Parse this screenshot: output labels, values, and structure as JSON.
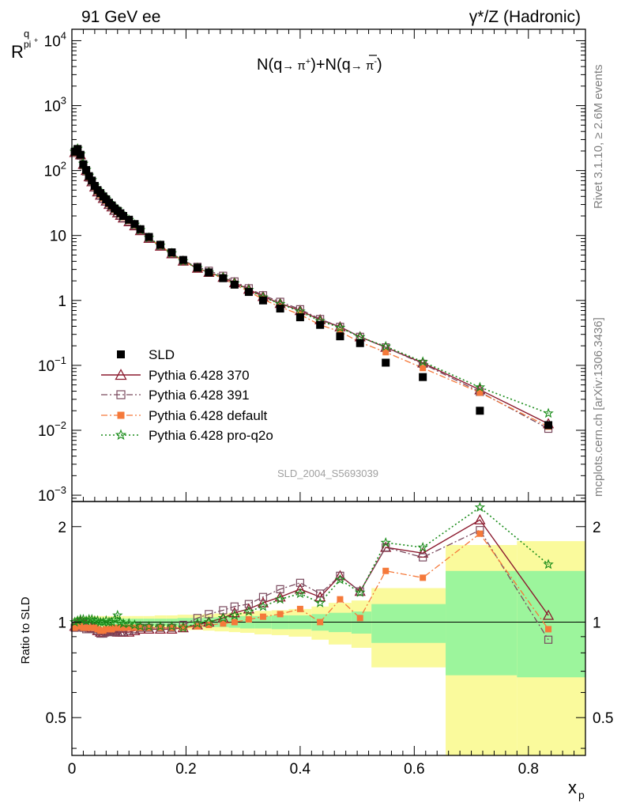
{
  "header": {
    "left": "91 GeV ee",
    "right": "γ*/Z (Hadronic)"
  },
  "side": {
    "rivet": "Rivet 3.1.10, ≥ 2.6M events",
    "mcplots": "mcplots.cern.ch [arXiv:1306.3436]"
  },
  "main_title": {
    "prefix": "N(q",
    "mid": " π",
    "mid2": ")+N(",
    "qbar": "q",
    "suffix": " π",
    "end": ")"
  },
  "ylabel": {
    "base": "R",
    "sup": "q",
    "sub": "pi",
    "subsup": "+"
  },
  "analysis_id": "SLD_2004_S5693039",
  "ratio_ylabel": "Ratio to SLD",
  "xlabel": {
    "base": "x",
    "sub": "p"
  },
  "legend": [
    {
      "label": "SLD",
      "key": "sld"
    },
    {
      "label": "Pythia 6.428 370",
      "key": "p370"
    },
    {
      "label": "Pythia 6.428 391",
      "key": "p391"
    },
    {
      "label": "Pythia 6.428 default",
      "key": "pdef"
    },
    {
      "label": "Pythia 6.428 pro-q2o",
      "key": "pq2o"
    }
  ],
  "chart_data": {
    "type": "scatter",
    "x_ticks": [
      "0",
      "0.2",
      "0.4",
      "0.6",
      "0.8"
    ],
    "xlim": [
      0,
      0.9
    ],
    "main": {
      "yscale": "log",
      "ylim": [
        0.0008,
        15000
      ],
      "y_ticks": [
        {
          "v": 10000,
          "label": "10",
          "exp": "4"
        },
        {
          "v": 1000,
          "label": "10",
          "exp": "3"
        },
        {
          "v": 100,
          "label": "10",
          "exp": "2"
        },
        {
          "v": 10,
          "label": "10",
          "exp": ""
        },
        {
          "v": 1,
          "label": "1",
          "exp": ""
        },
        {
          "v": 0.1,
          "label": "10",
          "exp": "−1"
        },
        {
          "v": 0.01,
          "label": "10",
          "exp": "−2"
        },
        {
          "v": 0.001,
          "label": "10",
          "exp": "−3"
        }
      ]
    },
    "ratio": {
      "yscale": "log",
      "ylim": [
        0.38,
        2.4
      ],
      "y_ticks": [
        {
          "v": 0.5,
          "label": "0.5"
        },
        {
          "v": 1,
          "label": "1"
        },
        {
          "v": 2,
          "label": "2"
        }
      ]
    },
    "x": [
      0.005,
      0.01,
      0.015,
      0.02,
      0.025,
      0.03,
      0.035,
      0.04,
      0.045,
      0.05,
      0.055,
      0.06,
      0.065,
      0.07,
      0.075,
      0.08,
      0.085,
      0.09,
      0.1,
      0.11,
      0.12,
      0.135,
      0.155,
      0.175,
      0.195,
      0.22,
      0.24,
      0.265,
      0.285,
      0.31,
      0.335,
      0.365,
      0.4,
      0.435,
      0.47,
      0.505,
      0.55,
      0.615,
      0.715,
      0.835
    ],
    "bins": [
      [
        0.0025,
        0.0075
      ],
      [
        0.0075,
        0.0125
      ],
      [
        0.0125,
        0.0175
      ],
      [
        0.0175,
        0.0225
      ],
      [
        0.0225,
        0.0275
      ],
      [
        0.0275,
        0.0325
      ],
      [
        0.0325,
        0.0375
      ],
      [
        0.0375,
        0.0425
      ],
      [
        0.0425,
        0.0475
      ],
      [
        0.0475,
        0.0525
      ],
      [
        0.0525,
        0.0575
      ],
      [
        0.0575,
        0.0625
      ],
      [
        0.0625,
        0.0675
      ],
      [
        0.0675,
        0.0725
      ],
      [
        0.0725,
        0.0775
      ],
      [
        0.0775,
        0.0825
      ],
      [
        0.0825,
        0.0875
      ],
      [
        0.0875,
        0.095
      ],
      [
        0.095,
        0.105
      ],
      [
        0.105,
        0.115
      ],
      [
        0.115,
        0.125
      ],
      [
        0.125,
        0.145
      ],
      [
        0.145,
        0.165
      ],
      [
        0.165,
        0.185
      ],
      [
        0.185,
        0.205
      ],
      [
        0.205,
        0.23
      ],
      [
        0.23,
        0.25
      ],
      [
        0.25,
        0.275
      ],
      [
        0.275,
        0.295
      ],
      [
        0.295,
        0.32
      ],
      [
        0.32,
        0.35
      ],
      [
        0.35,
        0.38
      ],
      [
        0.38,
        0.42
      ],
      [
        0.42,
        0.45
      ],
      [
        0.45,
        0.49
      ],
      [
        0.49,
        0.525
      ],
      [
        0.525,
        0.585
      ],
      [
        0.585,
        0.655
      ],
      [
        0.655,
        0.78
      ],
      [
        0.78,
        0.9
      ]
    ],
    "band_green": [
      [
        0.98,
        1.02
      ],
      [
        0.98,
        1.02
      ],
      [
        0.98,
        1.02
      ],
      [
        0.98,
        1.02
      ],
      [
        0.98,
        1.02
      ],
      [
        0.975,
        1.025
      ],
      [
        0.975,
        1.025
      ],
      [
        0.975,
        1.025
      ],
      [
        0.975,
        1.025
      ],
      [
        0.975,
        1.025
      ],
      [
        0.975,
        1.025
      ],
      [
        0.975,
        1.025
      ],
      [
        0.975,
        1.025
      ],
      [
        0.975,
        1.025
      ],
      [
        0.975,
        1.025
      ],
      [
        0.975,
        1.025
      ],
      [
        0.975,
        1.025
      ],
      [
        0.975,
        1.025
      ],
      [
        0.975,
        1.025
      ],
      [
        0.975,
        1.025
      ],
      [
        0.975,
        1.025
      ],
      [
        0.975,
        1.025
      ],
      [
        0.975,
        1.025
      ],
      [
        0.975,
        1.025
      ],
      [
        0.97,
        1.03
      ],
      [
        0.97,
        1.03
      ],
      [
        0.965,
        1.035
      ],
      [
        0.965,
        1.035
      ],
      [
        0.96,
        1.04
      ],
      [
        0.955,
        1.045
      ],
      [
        0.955,
        1.045
      ],
      [
        0.95,
        1.05
      ],
      [
        0.95,
        1.05
      ],
      [
        0.94,
        1.06
      ],
      [
        0.93,
        1.07
      ],
      [
        0.92,
        1.08
      ],
      [
        0.86,
        1.14
      ],
      [
        0.86,
        1.14
      ],
      [
        0.68,
        1.45
      ],
      [
        0.67,
        1.45
      ]
    ],
    "band_yellow": [
      [
        0.97,
        1.03
      ],
      [
        0.96,
        1.04
      ],
      [
        0.96,
        1.04
      ],
      [
        0.96,
        1.04
      ],
      [
        0.96,
        1.04
      ],
      [
        0.955,
        1.045
      ],
      [
        0.955,
        1.045
      ],
      [
        0.955,
        1.045
      ],
      [
        0.955,
        1.045
      ],
      [
        0.955,
        1.045
      ],
      [
        0.955,
        1.045
      ],
      [
        0.955,
        1.045
      ],
      [
        0.955,
        1.045
      ],
      [
        0.955,
        1.045
      ],
      [
        0.955,
        1.045
      ],
      [
        0.955,
        1.045
      ],
      [
        0.955,
        1.045
      ],
      [
        0.955,
        1.045
      ],
      [
        0.955,
        1.045
      ],
      [
        0.955,
        1.045
      ],
      [
        0.955,
        1.045
      ],
      [
        0.955,
        1.045
      ],
      [
        0.95,
        1.05
      ],
      [
        0.95,
        1.05
      ],
      [
        0.945,
        1.055
      ],
      [
        0.945,
        1.055
      ],
      [
        0.94,
        1.06
      ],
      [
        0.935,
        1.065
      ],
      [
        0.93,
        1.07
      ],
      [
        0.925,
        1.075
      ],
      [
        0.915,
        1.085
      ],
      [
        0.91,
        1.09
      ],
      [
        0.9,
        1.1
      ],
      [
        0.88,
        1.12
      ],
      [
        0.85,
        1.15
      ],
      [
        0.83,
        1.17
      ],
      [
        0.72,
        1.28
      ],
      [
        0.72,
        1.28
      ],
      [
        0.38,
        1.75
      ],
      [
        0.38,
        1.8
      ]
    ],
    "series": [
      {
        "name": "SLD",
        "key": "sld",
        "values": [
          195,
          215,
          175,
          125,
          102,
          82,
          70,
          58,
          50,
          45,
          40,
          36,
          32,
          29,
          26,
          24,
          22,
          20,
          17.5,
          15,
          12.5,
          9.5,
          7.2,
          5.5,
          4.2,
          3.2,
          2.7,
          2.2,
          1.75,
          1.35,
          1.0,
          0.75,
          0.55,
          0.42,
          0.28,
          0.22,
          0.11,
          0.066,
          0.02,
          0.012
        ]
      },
      {
        "name": "Pythia 6.428 370",
        "key": "p370",
        "ratio": [
          0.97,
          0.99,
          1.0,
          0.99,
          0.98,
          0.98,
          0.96,
          0.96,
          0.94,
          0.93,
          0.93,
          0.94,
          0.94,
          0.95,
          0.94,
          0.93,
          0.93,
          0.93,
          0.93,
          0.94,
          0.95,
          0.95,
          0.95,
          0.95,
          0.96,
          0.98,
          1.0,
          1.03,
          1.07,
          1.1,
          1.15,
          1.2,
          1.27,
          1.2,
          1.4,
          1.25,
          1.72,
          1.65,
          2.1,
          1.05
        ]
      },
      {
        "name": "Pythia 6.428 391",
        "key": "p391",
        "ratio": [
          0.96,
          0.98,
          0.97,
          0.96,
          0.95,
          0.95,
          0.95,
          0.95,
          0.94,
          0.92,
          0.92,
          0.93,
          0.93,
          0.94,
          0.93,
          0.93,
          0.93,
          0.93,
          0.94,
          0.95,
          0.96,
          0.96,
          0.96,
          0.96,
          0.98,
          1.03,
          1.06,
          1.09,
          1.12,
          1.14,
          1.2,
          1.27,
          1.33,
          1.23,
          1.4,
          1.25,
          1.72,
          1.6,
          1.95,
          0.88
        ]
      },
      {
        "name": "Pythia 6.428 default",
        "key": "pdef",
        "ratio": [
          0.96,
          0.97,
          0.97,
          0.96,
          0.96,
          0.96,
          0.96,
          0.96,
          0.95,
          0.94,
          0.94,
          0.95,
          0.95,
          0.95,
          0.96,
          0.96,
          0.96,
          0.96,
          0.96,
          0.96,
          0.96,
          0.96,
          0.96,
          0.96,
          0.96,
          0.97,
          0.98,
          0.99,
          1.0,
          1.02,
          1.04,
          1.06,
          1.1,
          1.0,
          1.18,
          1.03,
          1.45,
          1.38,
          1.9,
          0.95
        ]
      },
      {
        "name": "Pythia 6.428 pro-q2o",
        "key": "pq2o",
        "ratio": [
          1.0,
          1.01,
          1.02,
          1.02,
          1.01,
          1.02,
          1.02,
          1.01,
          1.01,
          1.0,
          1.0,
          1.01,
          1.0,
          1.0,
          1.02,
          1.05,
          1.0,
          0.99,
          0.99,
          0.98,
          0.97,
          0.97,
          0.97,
          0.97,
          0.96,
          0.99,
          1.0,
          1.03,
          1.05,
          1.08,
          1.12,
          1.18,
          1.23,
          1.15,
          1.36,
          1.24,
          1.78,
          1.72,
          2.3,
          1.52
        ]
      }
    ]
  },
  "style": {
    "colors": {
      "sld": "#000000",
      "p370": "#8b1a2e",
      "p391": "#7a4a5e",
      "pdef": "#f5793a",
      "pq2o": "#1a8c1a",
      "band_green": "#9cf59c",
      "band_yellow": "#fafa9c"
    }
  }
}
